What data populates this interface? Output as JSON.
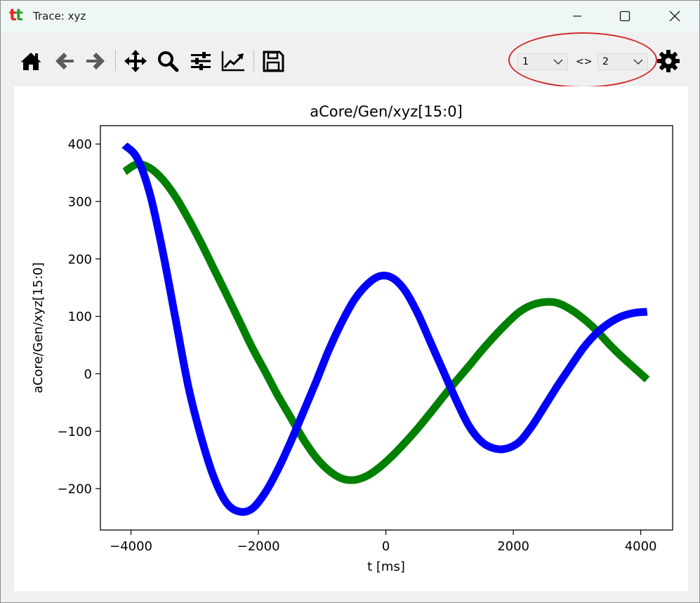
{
  "window": {
    "title": "Trace: xyz",
    "logo_text": "tt"
  },
  "toolbar": {
    "buttons": [
      "home-icon",
      "back-arrow-icon",
      "forward-arrow-icon",
      "pan-icon",
      "zoom-icon",
      "configure-subplots-icon",
      "edit-axis-icon",
      "save-icon"
    ],
    "select_a": {
      "value": "1"
    },
    "separator_text": "<>",
    "select_b": {
      "value": "2"
    },
    "highlight_color": "#d42a2a"
  },
  "chart_data": {
    "type": "line",
    "title": "aCore/Gen/xyz[15:0]",
    "xlabel": "t [ms]",
    "ylabel": "aCore/Gen/xyz[15:0]",
    "xlim": [
      -4480,
      4500
    ],
    "ylim": [
      -272,
      432
    ],
    "xticks": [
      -4000,
      -2000,
      0,
      2000,
      4000
    ],
    "xtick_labels": [
      "−4000",
      "−2000",
      "0",
      "2000",
      "4000"
    ],
    "yticks": [
      -200,
      -100,
      0,
      100,
      200,
      300,
      400
    ],
    "ytick_labels": [
      "−200",
      "−100",
      "0",
      "100",
      "200",
      "300",
      "400"
    ],
    "grid": false,
    "series": [
      {
        "color": "#008000",
        "x": [
          -4100,
          -3900,
          -3700,
          -3500,
          -3300,
          -3100,
          -2900,
          -2700,
          -2500,
          -2300,
          -2100,
          -1900,
          -1700,
          -1500,
          -1300,
          -1100,
          -900,
          -700,
          -500,
          -300,
          -100,
          100,
          300,
          500,
          700,
          900,
          1100,
          1300,
          1500,
          1700,
          1900,
          2100,
          2300,
          2500,
          2700,
          2900,
          3100,
          3300,
          3500,
          3700,
          3900,
          4100
        ],
        "y": [
          352,
          365,
          358,
          338,
          308,
          270,
          228,
          183,
          138,
          92,
          46,
          5,
          -37,
          -75,
          -113,
          -145,
          -168,
          -182,
          -185,
          -178,
          -163,
          -143,
          -120,
          -95,
          -68,
          -40,
          -13,
          13,
          40,
          65,
          88,
          108,
          120,
          125,
          123,
          112,
          96,
          76,
          52,
          30,
          10,
          -10
        ]
      },
      {
        "color": "#0000ff",
        "x": [
          -4100,
          -3900,
          -3700,
          -3500,
          -3300,
          -3100,
          -2900,
          -2700,
          -2500,
          -2300,
          -2100,
          -1900,
          -1700,
          -1500,
          -1300,
          -1100,
          -900,
          -700,
          -500,
          -300,
          -100,
          100,
          300,
          500,
          700,
          900,
          1100,
          1300,
          1500,
          1700,
          1900,
          2100,
          2300,
          2500,
          2700,
          2900,
          3100,
          3300,
          3500,
          3700,
          3900,
          4100
        ],
        "y": [
          398,
          375,
          312,
          212,
          95,
          -22,
          -110,
          -180,
          -225,
          -240,
          -235,
          -208,
          -168,
          -120,
          -68,
          -15,
          40,
          88,
          128,
          155,
          170,
          167,
          145,
          105,
          55,
          5,
          -45,
          -90,
          -118,
          -130,
          -130,
          -118,
          -90,
          -55,
          -20,
          13,
          45,
          70,
          88,
          100,
          106,
          108
        ]
      }
    ]
  }
}
